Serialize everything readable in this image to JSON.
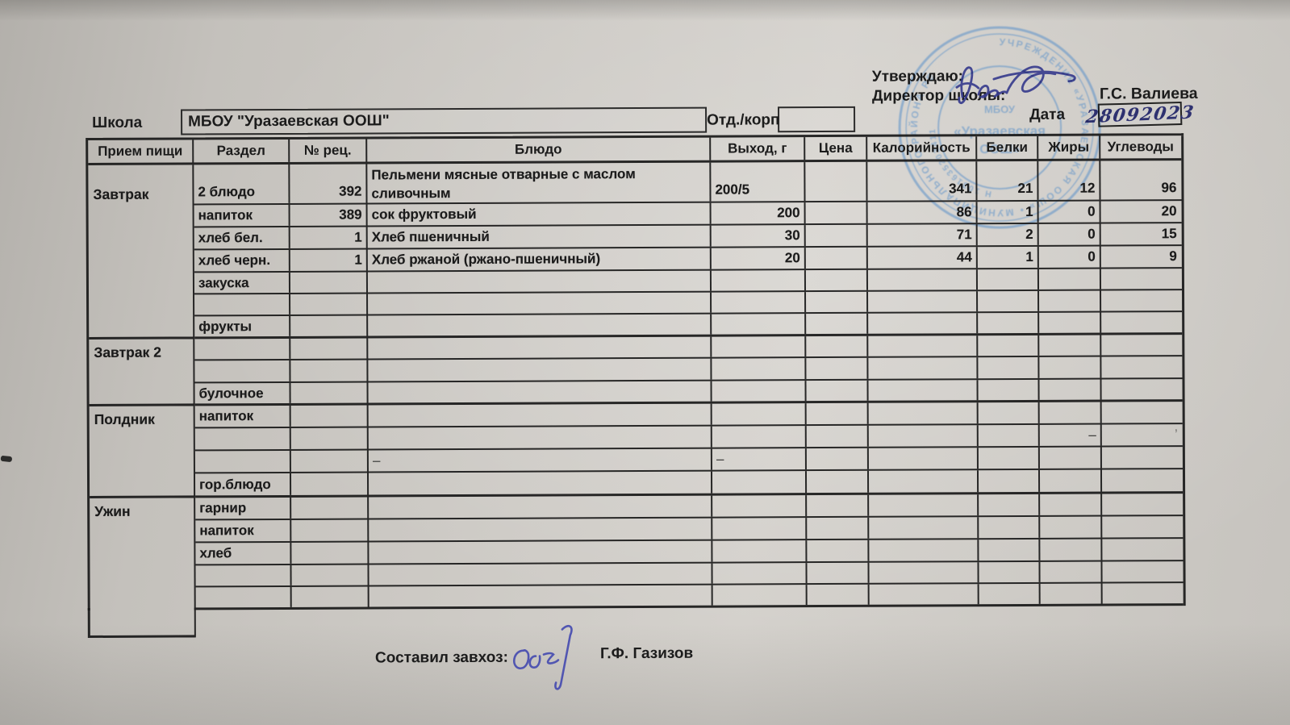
{
  "approval": {
    "approve_label": "Утверждаю:",
    "director_label": "Директор школы:",
    "director_name": "Г.С. Валиева",
    "date_label": "Дата",
    "date_value": "28092023"
  },
  "school": {
    "label": "Школа",
    "name": "МБОУ \"Уразаевская ООШ\"",
    "dept_label": "Отд./корп",
    "dept_value": ""
  },
  "stamp": {
    "ring_text": "УЧРЕЖДЕНИЕ «УРАЗАЕВСКАЯ ООШ»  •  МУНИЦИПАЛЬНОГО РАЙОНА РЕ",
    "number_text": "Н 1031635202411",
    "center_line1": "МБОУ",
    "center_line2": "«Уразаевская",
    "center_line3": "ООШ»",
    "ink": "#5f93c9"
  },
  "table": {
    "headers": [
      "Прием пищи",
      "Раздел",
      "№ рец.",
      "Блюдо",
      "Выход, г",
      "Цена",
      "Калорийность",
      "Белки",
      "Жиры",
      "Углеводы"
    ],
    "sections": [
      {
        "name": "Завтрак",
        "rows": [
          {
            "razdel": "2 блюдо",
            "num": "392",
            "dish_lines": [
              "Пельмени мясные отварные с маслом",
              "сливочным"
            ],
            "out": "200/5",
            "out_align": "left",
            "price": "",
            "kcal": "341",
            "protein": "21",
            "fat": "12",
            "carbs": "96",
            "tall": true
          },
          {
            "razdel": "напиток",
            "num": "389",
            "dish": "сок фруктовый",
            "out": "200",
            "price": "",
            "kcal": "86",
            "protein": "1",
            "fat": "0",
            "carbs": "20"
          },
          {
            "razdel": "хлеб бел.",
            "num": "1",
            "dish": "Хлеб пшеничный",
            "out": "30",
            "price": "",
            "kcal": "71",
            "protein": "2",
            "fat": "0",
            "carbs": "15"
          },
          {
            "razdel": "хлеб черн.",
            "num": "1",
            "dish": "Хлеб ржаной (ржано-пшеничный)",
            "out": "20",
            "price": "",
            "kcal": "44",
            "protein": "1",
            "fat": "0",
            "carbs": "9"
          },
          {
            "razdel": "закуска"
          },
          {},
          {
            "razdel": "фрукты"
          }
        ]
      },
      {
        "name": "Завтрак 2",
        "rows": [
          {},
          {},
          {
            "razdel": "булочное"
          }
        ]
      },
      {
        "name": "Полдник",
        "rows": [
          {
            "razdel": "напиток"
          },
          {
            "fat": "–",
            "carbs": "’"
          },
          {
            "dish": "–",
            "out": "–",
            "out_align": "left"
          },
          {
            "razdel": "гор.блюдо"
          }
        ]
      },
      {
        "name": "Ужин",
        "rows": [
          {
            "razdel": "гарнир"
          },
          {
            "razdel": "напиток"
          },
          {
            "razdel": "хлеб"
          },
          {},
          {}
        ]
      }
    ]
  },
  "footer": {
    "composed_label": "Составил завхоз:",
    "composed_name": "Г.Ф. Газизов"
  }
}
